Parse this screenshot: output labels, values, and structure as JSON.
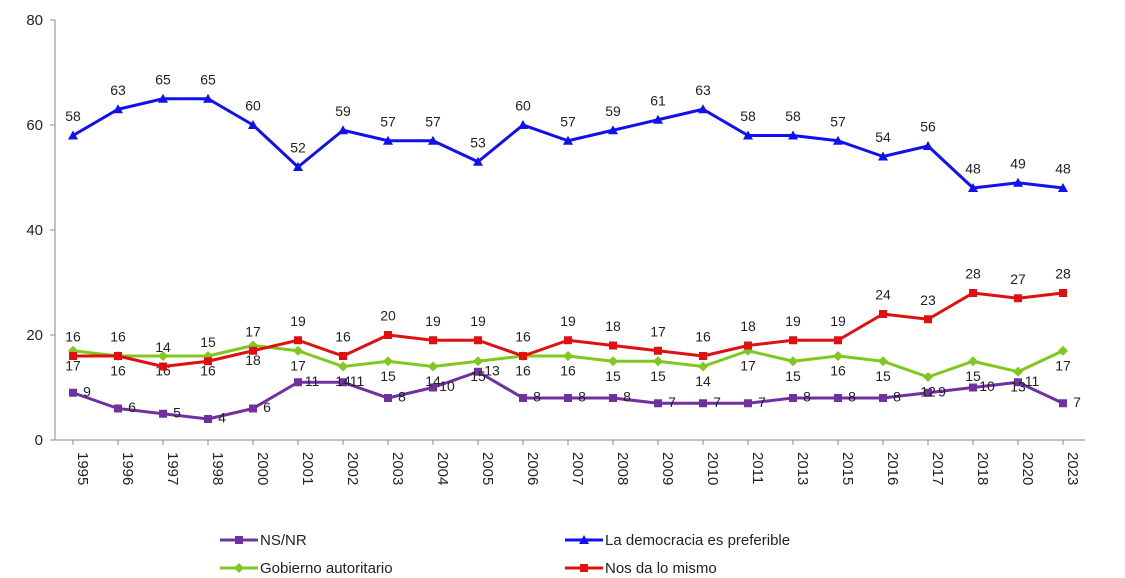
{
  "chart_data": {
    "type": "line",
    "categories": [
      "1995",
      "1996",
      "1997",
      "1998",
      "2000",
      "2001",
      "2002",
      "2003",
      "2004",
      "2005",
      "2006",
      "2007",
      "2008",
      "2009",
      "2010",
      "2011",
      "2013",
      "2015",
      "2016",
      "2017",
      "2018",
      "2020",
      "2023"
    ],
    "series": [
      {
        "name": "NS/NR",
        "color": "#7030a0",
        "marker": "square",
        "values": [
          9,
          6,
          5,
          4,
          6,
          11,
          11,
          8,
          10,
          13,
          8,
          8,
          8,
          7,
          7,
          7,
          8,
          8,
          8,
          9,
          10,
          11,
          7
        ]
      },
      {
        "name": "La democracia es preferible",
        "color": "#1010f0",
        "marker": "triangle",
        "values": [
          58,
          63,
          65,
          65,
          60,
          52,
          59,
          57,
          57,
          53,
          60,
          57,
          59,
          61,
          63,
          58,
          58,
          57,
          54,
          56,
          48,
          49,
          48
        ]
      },
      {
        "name": "Gobierno autoritario",
        "color": "#80c820",
        "marker": "diamond",
        "values": [
          17,
          16,
          16,
          16,
          18,
          17,
          14,
          15,
          14,
          15,
          16,
          16,
          15,
          15,
          14,
          17,
          15,
          16,
          15,
          12,
          15,
          13,
          17
        ]
      },
      {
        "name": "Nos da lo mismo",
        "color": "#e01010",
        "marker": "square",
        "values": [
          16,
          16,
          14,
          15,
          17,
          19,
          16,
          20,
          19,
          19,
          16,
          19,
          18,
          17,
          16,
          18,
          19,
          19,
          24,
          23,
          28,
          27,
          28
        ]
      }
    ],
    "ylim": [
      0,
      80
    ],
    "yticks": [
      0,
      20,
      40,
      60,
      80
    ],
    "grid": false
  }
}
